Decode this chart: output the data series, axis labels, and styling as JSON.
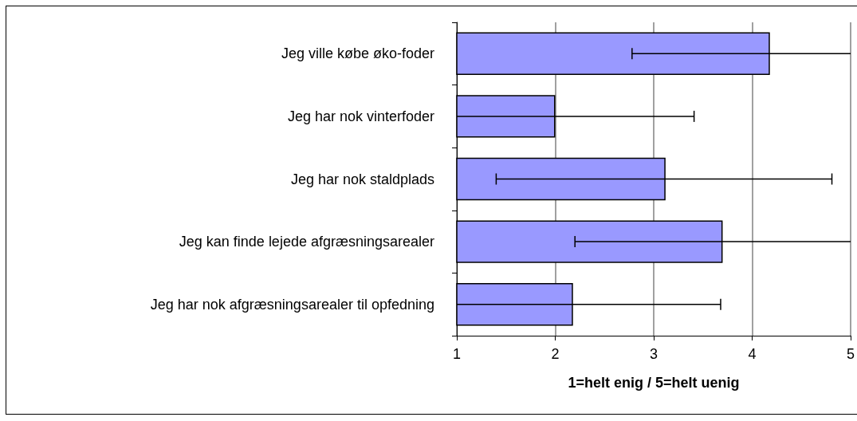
{
  "chart_data": {
    "type": "bar",
    "orientation": "horizontal",
    "xlabel": "1=helt enig / 5=helt uenig",
    "categories": [
      "Jeg ville købe øko-foder",
      "Jeg har nok vinterfoder",
      "Jeg har nok staldplads",
      "Jeg kan finde lejede afgræsningsarealer",
      "Jeg har nok afgræsningsarealer til opfedning"
    ],
    "values": [
      4.18,
      2.0,
      3.12,
      3.7,
      2.18
    ],
    "errors": [
      [
        2.78,
        5
      ],
      [
        1,
        3.41
      ],
      [
        1.4,
        4.81
      ],
      [
        2.2,
        5
      ],
      [
        1,
        3.68
      ]
    ],
    "color": "#9999ff",
    "xlim": [
      1,
      5
    ],
    "xticks": [
      1,
      2,
      3,
      4,
      5
    ],
    "grid": "x"
  }
}
